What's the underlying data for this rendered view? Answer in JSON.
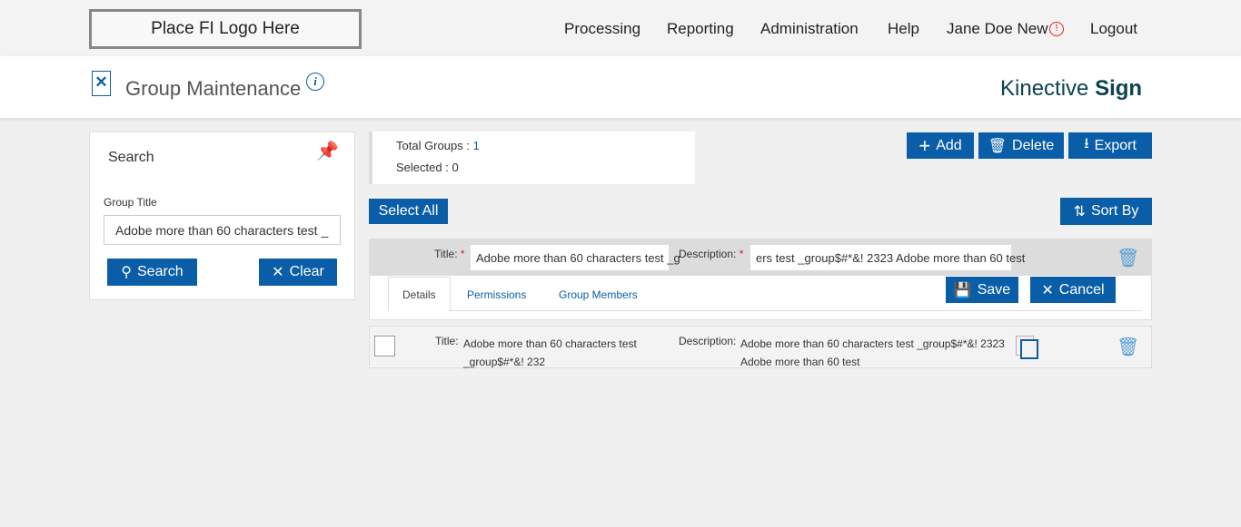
{
  "top": {
    "logo": "Place FI Logo Here",
    "nav": [
      "Processing",
      "Reporting",
      "Administration",
      "Help",
      "Jane Doe New",
      "Logout"
    ]
  },
  "header": {
    "title": "Group Maintenance",
    "brand_light": "Kinective",
    "brand_bold": "Sign"
  },
  "search": {
    "title": "Search",
    "field_label": "Group Title",
    "field_value": "Adobe more than 60 characters test _",
    "search_btn": "Search",
    "clear_btn": "Clear"
  },
  "summary": {
    "total_label": "Total Groups :",
    "total": "1",
    "selected_label": "Selected :",
    "selected": "0"
  },
  "toolbar": {
    "add": "Add",
    "delete": "Delete",
    "export": "Export",
    "select_all": "Select All",
    "sort_by": "Sort By"
  },
  "edit": {
    "title_label": "Title:",
    "title_value": "Adobe more than 60 characters test _g",
    "desc_label": "Description:",
    "desc_value": "ers test _group$#*&! 2323 Adobe more than 60 test",
    "tabs": [
      "Details",
      "Permissions",
      "Group Members"
    ],
    "save": "Save",
    "cancel": "Cancel"
  },
  "row": {
    "title_label": "Title:",
    "title_value": "Adobe more than 60 characters test _group$#*&! 232",
    "desc_label": "Description:",
    "desc_value": "Adobe more than 60 characters test _group$#*&! 2323 Adobe more than 60 test"
  },
  "colors": {
    "primary": "#0a5ea8",
    "alert": "#e02020"
  }
}
